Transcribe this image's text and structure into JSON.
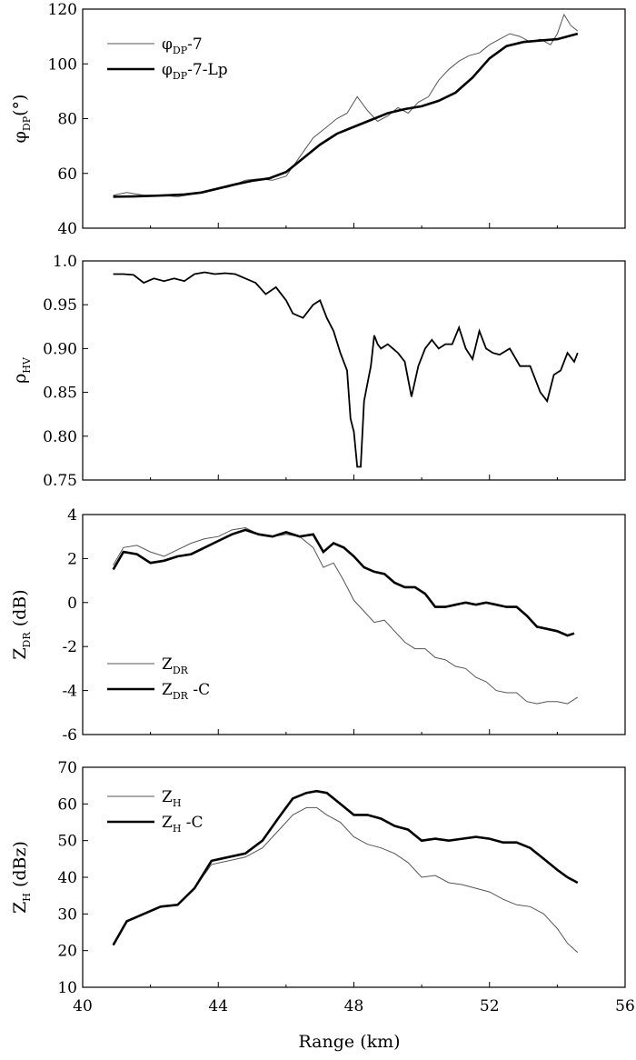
{
  "chart_data": [
    {
      "type": "line",
      "ylabel": {
        "main": "φ",
        "sub": "DP",
        "tail": "(°)"
      },
      "ylim": [
        40,
        120
      ],
      "yticks": [
        "40",
        "60",
        "80",
        "100",
        "120"
      ],
      "xlim": [
        40,
        56
      ],
      "legend": "top-left",
      "series": [
        {
          "name": {
            "main": "φ",
            "sub": "DP",
            "tail": "-7"
          },
          "style": "thin",
          "x": [
            40.9,
            41.3,
            41.8,
            42.3,
            42.8,
            43.3,
            43.8,
            44.3,
            44.8,
            45.2,
            45.6,
            46.0,
            46.4,
            46.8,
            47.1,
            47.5,
            47.8,
            48.1,
            48.4,
            48.7,
            49.0,
            49.3,
            49.6,
            49.9,
            50.2,
            50.5,
            50.8,
            51.1,
            51.4,
            51.7,
            52.0,
            52.3,
            52.6,
            52.9,
            53.2,
            53.5,
            53.8,
            54.0,
            54.2,
            54.4,
            54.6
          ],
          "y": [
            52,
            53,
            52,
            52,
            51.5,
            52.5,
            54,
            55,
            57.5,
            58,
            57.5,
            59,
            66,
            73,
            76,
            80,
            82,
            88,
            83,
            79,
            81,
            84,
            82,
            86,
            88,
            94,
            98,
            101,
            103,
            104,
            107,
            109,
            111,
            110,
            108,
            109,
            107,
            111,
            118,
            114,
            112
          ]
        },
        {
          "name": {
            "main": "φ",
            "sub": "DP",
            "tail": "-7-Lp"
          },
          "style": "thick",
          "x": [
            40.9,
            41.5,
            42.0,
            42.5,
            43.0,
            43.5,
            44.0,
            44.5,
            45.0,
            45.5,
            46.0,
            46.5,
            47.0,
            47.5,
            48.0,
            48.5,
            49.0,
            49.5,
            50.0,
            50.5,
            51.0,
            51.5,
            52.0,
            52.5,
            53.0,
            53.5,
            54.0,
            54.6
          ],
          "y": [
            51.5,
            51.6,
            51.8,
            52,
            52.3,
            53,
            54.5,
            56,
            57.3,
            58.2,
            60.5,
            65.5,
            70.5,
            74.5,
            77,
            79.5,
            82,
            83.5,
            84.5,
            86.5,
            89.5,
            95,
            102,
            106.5,
            108,
            108.5,
            109,
            111
          ]
        }
      ]
    },
    {
      "type": "line",
      "ylabel": {
        "main": "ρ",
        "sub": "HV",
        "tail": ""
      },
      "ylim": [
        0.75,
        1.0
      ],
      "yticks": [
        "0.75",
        "0.80",
        "0.85",
        "0.90",
        "0.95",
        "1.0"
      ],
      "xlim": [
        40,
        56
      ],
      "series": [
        {
          "style": "single",
          "x": [
            40.9,
            41.2,
            41.5,
            41.8,
            42.1,
            42.4,
            42.7,
            43.0,
            43.3,
            43.6,
            43.9,
            44.2,
            44.5,
            44.8,
            45.1,
            45.4,
            45.7,
            46.0,
            46.2,
            46.5,
            46.8,
            47.0,
            47.2,
            47.4,
            47.6,
            47.8,
            47.9,
            48.0,
            48.1,
            48.2,
            48.3,
            48.4,
            48.5,
            48.6,
            48.7,
            48.8,
            49.0,
            49.3,
            49.5,
            49.7,
            49.9,
            50.1,
            50.3,
            50.5,
            50.7,
            50.9,
            51.1,
            51.3,
            51.5,
            51.7,
            51.9,
            52.1,
            52.3,
            52.6,
            52.9,
            53.2,
            53.5,
            53.7,
            53.9,
            54.1,
            54.3,
            54.5,
            54.6
          ],
          "y": [
            0.985,
            0.985,
            0.984,
            0.975,
            0.98,
            0.977,
            0.98,
            0.977,
            0.985,
            0.987,
            0.985,
            0.986,
            0.985,
            0.98,
            0.975,
            0.962,
            0.97,
            0.955,
            0.94,
            0.935,
            0.95,
            0.955,
            0.935,
            0.92,
            0.895,
            0.875,
            0.82,
            0.805,
            0.765,
            0.765,
            0.84,
            0.86,
            0.88,
            0.915,
            0.905,
            0.9,
            0.905,
            0.895,
            0.885,
            0.845,
            0.88,
            0.9,
            0.91,
            0.9,
            0.905,
            0.905,
            0.924,
            0.9,
            0.888,
            0.92,
            0.9,
            0.895,
            0.893,
            0.9,
            0.88,
            0.88,
            0.85,
            0.84,
            0.87,
            0.875,
            0.895,
            0.885,
            0.895
          ]
        }
      ]
    },
    {
      "type": "line",
      "ylabel": {
        "main": "Z",
        "sub": "DR",
        "tail": " (dB)"
      },
      "ylim": [
        -6,
        4
      ],
      "yticks": [
        "-6",
        "-4",
        "-2",
        "0",
        "2",
        "4"
      ],
      "xlim": [
        40,
        56
      ],
      "legend": "bottom-left",
      "series": [
        {
          "name": {
            "main": "Z",
            "sub": "DR",
            "tail": ""
          },
          "style": "thin",
          "x": [
            40.9,
            41.2,
            41.6,
            42.0,
            42.4,
            42.8,
            43.2,
            43.6,
            44.0,
            44.4,
            44.8,
            45.2,
            45.6,
            46.0,
            46.4,
            46.8,
            47.1,
            47.4,
            47.7,
            48.0,
            48.3,
            48.6,
            48.9,
            49.2,
            49.5,
            49.8,
            50.1,
            50.4,
            50.7,
            51.0,
            51.3,
            51.6,
            51.9,
            52.2,
            52.5,
            52.8,
            53.1,
            53.4,
            53.7,
            54.0,
            54.3,
            54.6
          ],
          "y": [
            1.7,
            2.5,
            2.6,
            2.3,
            2.1,
            2.4,
            2.7,
            2.9,
            3.0,
            3.3,
            3.4,
            3.1,
            3.0,
            3.1,
            3.0,
            2.5,
            1.6,
            1.8,
            1.0,
            0.1,
            -0.4,
            -0.9,
            -0.8,
            -1.3,
            -1.8,
            -2.1,
            -2.1,
            -2.5,
            -2.6,
            -2.9,
            -3.0,
            -3.4,
            -3.6,
            -4.0,
            -4.1,
            -4.1,
            -4.5,
            -4.6,
            -4.5,
            -4.5,
            -4.6,
            -4.3
          ]
        },
        {
          "name": {
            "main": "Z",
            "sub": "DR",
            "tail": " -C"
          },
          "style": "thick",
          "x": [
            40.9,
            41.2,
            41.6,
            42.0,
            42.4,
            42.8,
            43.2,
            43.6,
            44.0,
            44.4,
            44.8,
            45.2,
            45.6,
            46.0,
            46.4,
            46.8,
            47.1,
            47.4,
            47.7,
            48.0,
            48.3,
            48.6,
            48.9,
            49.2,
            49.5,
            49.8,
            50.1,
            50.4,
            50.7,
            51.0,
            51.3,
            51.6,
            51.9,
            52.2,
            52.5,
            52.8,
            53.1,
            53.4,
            53.7,
            54.0,
            54.3,
            54.5
          ],
          "y": [
            1.5,
            2.3,
            2.2,
            1.8,
            1.9,
            2.1,
            2.2,
            2.5,
            2.8,
            3.1,
            3.3,
            3.1,
            3.0,
            3.2,
            3.0,
            3.1,
            2.3,
            2.7,
            2.5,
            2.1,
            1.6,
            1.4,
            1.3,
            0.9,
            0.7,
            0.7,
            0.4,
            -0.2,
            -0.2,
            -0.1,
            0.0,
            -0.1,
            0.0,
            -0.1,
            -0.2,
            -0.2,
            -0.6,
            -1.1,
            -1.2,
            -1.3,
            -1.5,
            -1.4
          ]
        }
      ]
    },
    {
      "type": "line",
      "ylabel": {
        "main": "Z",
        "sub": "H",
        "tail": " (dBz)"
      },
      "ylim": [
        10,
        70
      ],
      "yticks": [
        "10",
        "20",
        "30",
        "40",
        "50",
        "60",
        "70"
      ],
      "xlim": [
        40,
        56
      ],
      "xticks": [
        "40",
        "44",
        "48",
        "52",
        "56"
      ],
      "xlabel": "Range (km)",
      "legend": "top-left",
      "series": [
        {
          "name": {
            "main": "Z",
            "sub": "H",
            "tail": ""
          },
          "style": "thin",
          "x": [
            40.9,
            41.3,
            41.8,
            42.3,
            42.8,
            43.3,
            43.8,
            44.3,
            44.8,
            45.3,
            45.8,
            46.2,
            46.6,
            46.9,
            47.2,
            47.6,
            48.0,
            48.4,
            48.8,
            49.2,
            49.6,
            50.0,
            50.4,
            50.8,
            51.2,
            51.6,
            52.0,
            52.4,
            52.8,
            53.2,
            53.6,
            54.0,
            54.3,
            54.6
          ],
          "y": [
            21.5,
            28,
            30,
            32,
            32.5,
            37,
            43.5,
            44.5,
            45.5,
            48,
            53,
            57,
            59,
            59,
            57,
            55,
            51,
            49,
            48,
            46.5,
            44,
            40,
            40.5,
            38.5,
            38,
            37,
            36,
            34,
            32.5,
            32,
            30,
            26,
            22,
            19.5
          ]
        },
        {
          "name": {
            "main": "Z",
            "sub": "H",
            "tail": " -C"
          },
          "style": "thick",
          "x": [
            40.9,
            41.3,
            41.8,
            42.3,
            42.8,
            43.3,
            43.8,
            44.3,
            44.8,
            45.3,
            45.8,
            46.2,
            46.6,
            46.9,
            47.2,
            47.6,
            48.0,
            48.4,
            48.8,
            49.2,
            49.6,
            50.0,
            50.4,
            50.8,
            51.2,
            51.6,
            52.0,
            52.4,
            52.8,
            53.2,
            53.6,
            54.0,
            54.3,
            54.6
          ],
          "y": [
            21.5,
            28,
            30,
            32,
            32.5,
            37,
            44.5,
            45.5,
            46.5,
            50,
            56.5,
            61.5,
            63,
            63.5,
            63,
            60,
            57,
            57,
            56,
            54,
            53,
            50,
            50.5,
            50,
            50.5,
            51,
            50.5,
            49.5,
            49.5,
            48,
            45,
            42,
            40,
            38.5
          ]
        }
      ]
    }
  ]
}
